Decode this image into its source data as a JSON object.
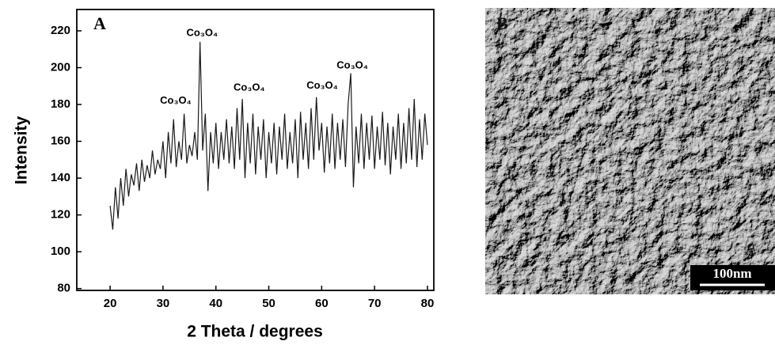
{
  "chart_data": {
    "type": "line",
    "panel_label": "A",
    "xlabel": "2 Theta / degrees",
    "ylabel": "Intensity",
    "x": [
      20,
      20.5,
      21,
      21.5,
      22,
      22.5,
      23,
      23.5,
      24,
      24.5,
      25,
      25.5,
      26,
      26.5,
      27,
      27.5,
      28,
      28.5,
      29,
      29.5,
      30,
      30.5,
      31,
      31.5,
      32,
      32.5,
      33,
      33.5,
      34,
      34.5,
      35,
      35.5,
      36,
      36.5,
      37,
      37.5,
      38,
      38.5,
      39,
      39.5,
      40,
      40.5,
      41,
      41.5,
      42,
      42.5,
      43,
      43.5,
      44,
      44.5,
      45,
      45.5,
      46,
      46.5,
      47,
      47.5,
      48,
      48.5,
      49,
      49.5,
      50,
      50.5,
      51,
      51.5,
      52,
      52.5,
      53,
      53.5,
      54,
      54.5,
      55,
      55.5,
      56,
      56.5,
      57,
      57.5,
      58,
      58.5,
      59,
      59.5,
      60,
      60.5,
      61,
      61.5,
      62,
      62.5,
      63,
      63.5,
      64,
      64.5,
      65,
      65.5,
      66,
      66.5,
      67,
      67.5,
      68,
      68.5,
      69,
      69.5,
      70,
      70.5,
      71,
      71.5,
      72,
      72.5,
      73,
      73.5,
      74,
      74.5,
      75,
      75.5,
      76,
      76.5,
      77,
      77.5,
      78,
      78.5,
      79,
      79.5,
      80
    ],
    "values": [
      125,
      112,
      135,
      118,
      140,
      125,
      145,
      130,
      142,
      136,
      148,
      133,
      150,
      138,
      147,
      140,
      155,
      142,
      150,
      145,
      160,
      140,
      165,
      148,
      172,
      146,
      160,
      150,
      175,
      148,
      158,
      152,
      165,
      150,
      214,
      155,
      175,
      133,
      165,
      148,
      170,
      145,
      165,
      150,
      172,
      148,
      168,
      145,
      178,
      150,
      183,
      140,
      170,
      148,
      175,
      142,
      168,
      150,
      172,
      140,
      165,
      148,
      170,
      142,
      168,
      150,
      175,
      145,
      165,
      148,
      172,
      140,
      176,
      150,
      170,
      145,
      178,
      150,
      184,
      155,
      170,
      143,
      168,
      148,
      175,
      145,
      170,
      150,
      172,
      146,
      180,
      197,
      135,
      168,
      148,
      175,
      145,
      170,
      150,
      174,
      145,
      168,
      150,
      176,
      147,
      170,
      142,
      168,
      150,
      175,
      145,
      170,
      148,
      178,
      150,
      183,
      146,
      172,
      150,
      175,
      158
    ],
    "color": "#1a1a1a",
    "xlim": [
      13.7,
      81.2
    ],
    "xticks": [
      20,
      30,
      40,
      50,
      60,
      70,
      80
    ],
    "ylim": [
      79,
      231.6
    ],
    "yticks": [
      80,
      100,
      120,
      140,
      160,
      180,
      200,
      220
    ],
    "annotations": [
      {
        "text": "Co₃O₄",
        "x": 32.4,
        "y": 182
      },
      {
        "text": "Co₃O₄",
        "x": 37.4,
        "y": 218.6
      },
      {
        "text": "Co₃O₄",
        "x": 46.3,
        "y": 189
      },
      {
        "text": "Co₃O₄",
        "x": 60.1,
        "y": 190
      },
      {
        "text": "Co₃O₄",
        "x": 65.8,
        "y": 201
      }
    ]
  },
  "panel_b": {
    "label": "B",
    "scale_bar": "100nm"
  }
}
